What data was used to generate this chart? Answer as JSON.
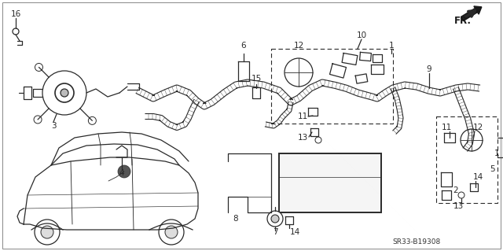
{
  "bg_color": "#ffffff",
  "lc": "#2a2a2a",
  "lw": 0.9,
  "fs": 7.5,
  "part_code": "SR33-B19308",
  "harness_color": "#3a3a3a",
  "gray_fill": "#e8e8e8"
}
